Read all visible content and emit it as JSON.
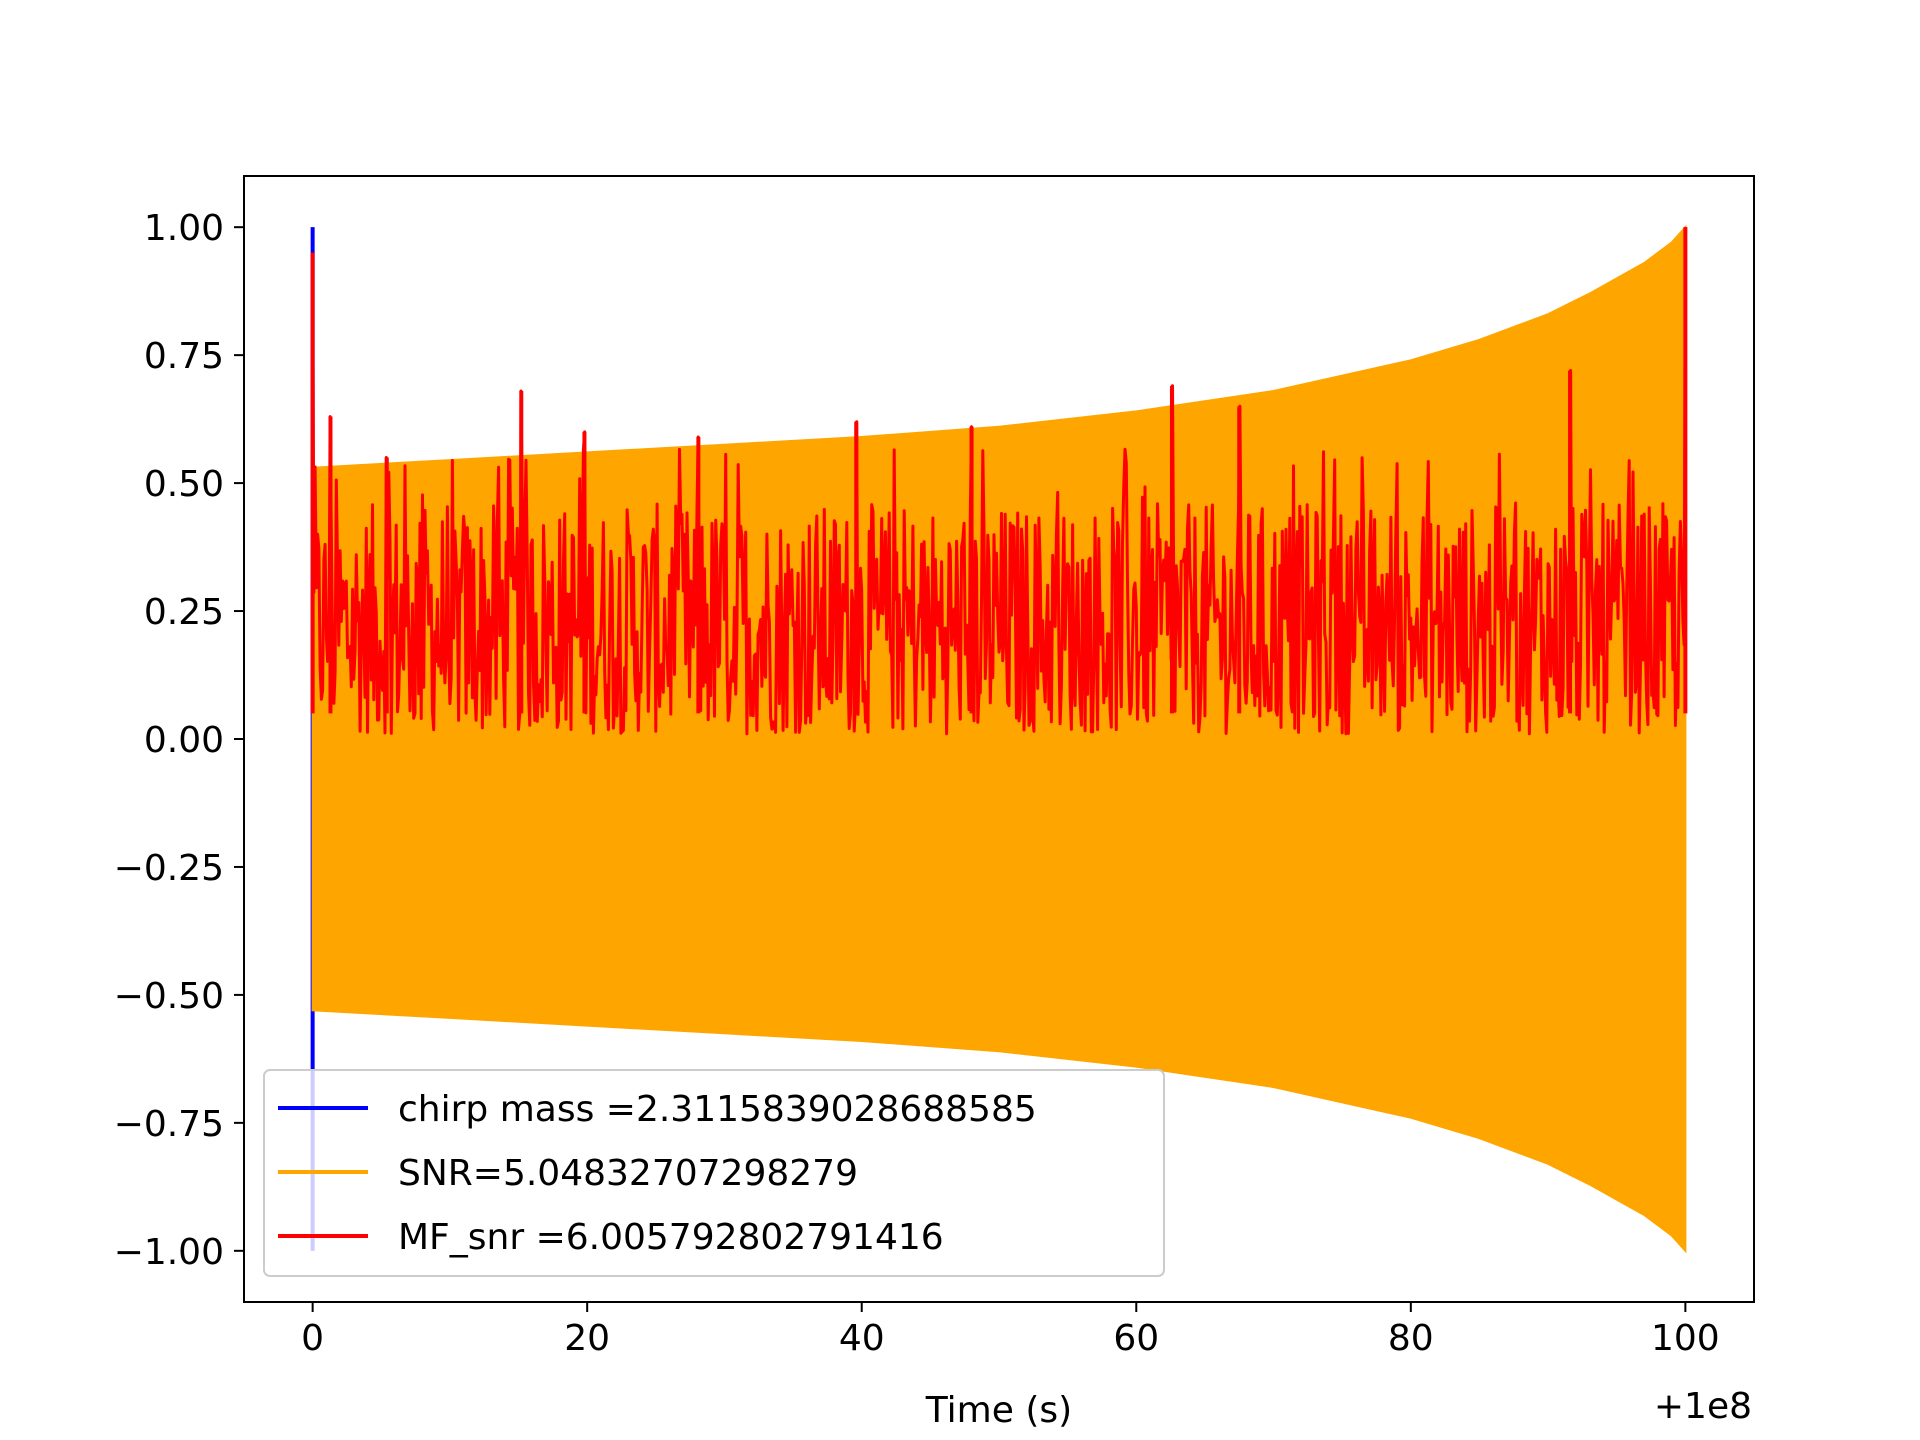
{
  "chart_data": {
    "type": "line",
    "title": "",
    "xlabel": "Time (s)",
    "ylabel": "",
    "x_offset_label": "+1e8",
    "xlim": [
      -5,
      105
    ],
    "ylim": [
      -1.1,
      1.1
    ],
    "xticks": [
      0,
      20,
      40,
      60,
      80,
      100
    ],
    "xtick_labels": [
      "0",
      "20",
      "40",
      "60",
      "80",
      "100"
    ],
    "yticks": [
      1.0,
      0.75,
      0.5,
      0.25,
      0.0,
      -0.25,
      -0.5,
      -0.75,
      -1.0
    ],
    "ytick_labels": [
      "1.00",
      "0.75",
      "0.50",
      "0.25",
      "0.00",
      "−0.25",
      "−0.50",
      "−0.75",
      "−1.00"
    ],
    "grid": false,
    "legend_position": "lower-left",
    "series": [
      {
        "name": "chirp mass =2.3115839028688585",
        "color": "#0000ff",
        "kind": "spike",
        "x": [
          0,
          0
        ],
        "y": [
          -1.0,
          1.0
        ]
      },
      {
        "name": "SNR=5.04832707298279",
        "color": "#ffa500",
        "kind": "chirp-envelope",
        "x": [
          0,
          10,
          20,
          30,
          40,
          50,
          60,
          70,
          80,
          85,
          90,
          93,
          95,
          97,
          98,
          99,
          100
        ],
        "upper": [
          0.53,
          0.545,
          0.56,
          0.575,
          0.59,
          0.61,
          0.64,
          0.68,
          0.74,
          0.78,
          0.83,
          0.87,
          0.9,
          0.93,
          0.95,
          0.97,
          1.0
        ],
        "lower": [
          -0.53,
          -0.545,
          -0.56,
          -0.575,
          -0.59,
          -0.61,
          -0.64,
          -0.68,
          -0.74,
          -0.78,
          -0.83,
          -0.87,
          -0.9,
          -0.93,
          -0.95,
          -0.97,
          -1.0
        ]
      },
      {
        "name": "MF_snr =6.005792802791416",
        "color": "#ff0000",
        "kind": "noise",
        "band": [
          0.0,
          0.45
        ],
        "peaks": [
          {
            "x": 0,
            "y": 0.95
          },
          {
            "x": 1.3,
            "y": 0.63
          },
          {
            "x": 5.4,
            "y": 0.55
          },
          {
            "x": 15.2,
            "y": 0.68
          },
          {
            "x": 19.8,
            "y": 0.6
          },
          {
            "x": 28.1,
            "y": 0.59
          },
          {
            "x": 39.6,
            "y": 0.62
          },
          {
            "x": 48,
            "y": 0.61
          },
          {
            "x": 62.6,
            "y": 0.69
          },
          {
            "x": 67.5,
            "y": 0.65
          },
          {
            "x": 91.6,
            "y": 0.72
          },
          {
            "x": 100,
            "y": 1.0
          }
        ]
      }
    ]
  }
}
